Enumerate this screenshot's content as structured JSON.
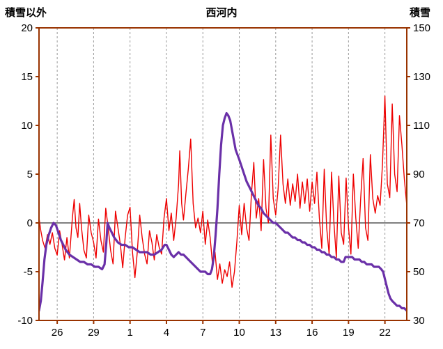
{
  "chart_data": {
    "type": "line",
    "title": "西河内",
    "frame_color": "#993300",
    "grid_color": "#999999",
    "zero_line_color": "#555555",
    "x_axis": {
      "min": 0,
      "max": 30.3,
      "tick_positions": [
        1.5,
        4.5,
        7.5,
        10.5,
        13.5,
        16.5,
        19.5,
        22.5,
        25.5,
        28.5
      ],
      "tick_labels": [
        "26",
        "29",
        "1",
        "4",
        "7",
        "10",
        "13",
        "16",
        "19",
        "22"
      ]
    },
    "left_axis": {
      "label": "積雪以外",
      "min": -10,
      "max": 20,
      "ticks": [
        20,
        15,
        10,
        5,
        0,
        -5,
        -10
      ],
      "zero_line": 0
    },
    "right_axis": {
      "label": "積雪",
      "min": 30,
      "max": 150,
      "ticks": [
        150,
        130,
        110,
        90,
        70,
        50,
        30
      ]
    },
    "grid": {
      "vertical_dashed": true,
      "horizontal": false
    },
    "legend": "none",
    "series": [
      {
        "name": "積雪以外",
        "axis": "left",
        "color": "#ee0000",
        "width": 1.4,
        "points": [
          [
            0,
            0.5
          ],
          [
            0.15,
            -0.8
          ],
          [
            0.3,
            -1.8
          ],
          [
            0.5,
            -2.6
          ],
          [
            0.7,
            -1.2
          ],
          [
            0.9,
            -2.2
          ],
          [
            1.1,
            -1.0
          ],
          [
            1.3,
            -2.6
          ],
          [
            1.5,
            -3.3
          ],
          [
            1.7,
            -0.8
          ],
          [
            1.9,
            -2.2
          ],
          [
            2.1,
            -3.8
          ],
          [
            2.3,
            -1.5
          ],
          [
            2.5,
            -3.6
          ],
          [
            2.75,
            0.5
          ],
          [
            2.9,
            2.4
          ],
          [
            3.05,
            -0.5
          ],
          [
            3.2,
            -1.5
          ],
          [
            3.35,
            2.0
          ],
          [
            3.5,
            -0.5
          ],
          [
            3.7,
            -2.8
          ],
          [
            3.9,
            -3.6
          ],
          [
            4.1,
            0.8
          ],
          [
            4.3,
            -1.0
          ],
          [
            4.5,
            -2.0
          ],
          [
            4.7,
            -3.6
          ],
          [
            4.9,
            0.4
          ],
          [
            5.1,
            -1.8
          ],
          [
            5.3,
            -3.0
          ],
          [
            5.5,
            1.5
          ],
          [
            5.7,
            -0.5
          ],
          [
            5.9,
            -2.8
          ],
          [
            6.1,
            -4.2
          ],
          [
            6.3,
            1.2
          ],
          [
            6.5,
            -0.5
          ],
          [
            6.7,
            -2.2
          ],
          [
            6.9,
            -4.6
          ],
          [
            7.1,
            -1.5
          ],
          [
            7.3,
            0.8
          ],
          [
            7.5,
            1.6
          ],
          [
            7.7,
            -3.0
          ],
          [
            7.9,
            -5.6
          ],
          [
            8.1,
            -3.0
          ],
          [
            8.3,
            0.8
          ],
          [
            8.5,
            -1.5
          ],
          [
            8.7,
            -3.2
          ],
          [
            8.9,
            -4.2
          ],
          [
            9.1,
            -0.8
          ],
          [
            9.3,
            -2.0
          ],
          [
            9.5,
            -3.8
          ],
          [
            9.7,
            -1.2
          ],
          [
            9.9,
            -2.5
          ],
          [
            10.1,
            -3.2
          ],
          [
            10.3,
            0.5
          ],
          [
            10.5,
            2.5
          ],
          [
            10.7,
            -0.8
          ],
          [
            10.9,
            1.0
          ],
          [
            11.1,
            -1.8
          ],
          [
            11.3,
            0.5
          ],
          [
            11.5,
            4.0
          ],
          [
            11.6,
            7.4
          ],
          [
            11.75,
            2.0
          ],
          [
            11.9,
            0.3
          ],
          [
            12.1,
            3.0
          ],
          [
            12.3,
            5.5
          ],
          [
            12.5,
            8.6
          ],
          [
            12.7,
            2.0
          ],
          [
            12.9,
            -0.5
          ],
          [
            13.1,
            0.5
          ],
          [
            13.3,
            -1.0
          ],
          [
            13.5,
            1.2
          ],
          [
            13.7,
            -2.2
          ],
          [
            13.9,
            0.3
          ],
          [
            14.1,
            -1.5
          ],
          [
            14.3,
            -4.3
          ],
          [
            14.5,
            -3.0
          ],
          [
            14.7,
            -5.8
          ],
          [
            14.9,
            -4.2
          ],
          [
            15.1,
            -6.2
          ],
          [
            15.3,
            -4.8
          ],
          [
            15.5,
            -5.5
          ],
          [
            15.7,
            -4.0
          ],
          [
            15.9,
            -6.6
          ],
          [
            16.1,
            -5.0
          ],
          [
            16.3,
            -2.0
          ],
          [
            16.5,
            1.8
          ],
          [
            16.7,
            -1.2
          ],
          [
            16.9,
            2.0
          ],
          [
            17.1,
            -0.5
          ],
          [
            17.3,
            -1.8
          ],
          [
            17.5,
            3.0
          ],
          [
            17.7,
            6.2
          ],
          [
            17.9,
            0.5
          ],
          [
            18.1,
            2.5
          ],
          [
            18.3,
            -0.8
          ],
          [
            18.5,
            6.5
          ],
          [
            18.7,
            1.5
          ],
          [
            18.9,
            0.0
          ],
          [
            19.1,
            9.0
          ],
          [
            19.3,
            2.5
          ],
          [
            19.5,
            0.8
          ],
          [
            19.7,
            3.5
          ],
          [
            19.9,
            9.0
          ],
          [
            20.1,
            4.0
          ],
          [
            20.3,
            2.0
          ],
          [
            20.5,
            4.5
          ],
          [
            20.7,
            1.8
          ],
          [
            20.9,
            4.0
          ],
          [
            21.1,
            2.2
          ],
          [
            21.3,
            5.0
          ],
          [
            21.5,
            1.5
          ],
          [
            21.7,
            4.2
          ],
          [
            21.9,
            2.0
          ],
          [
            22.1,
            4.5
          ],
          [
            22.3,
            1.2
          ],
          [
            22.5,
            4.2
          ],
          [
            22.7,
            2.0
          ],
          [
            22.9,
            5.2
          ],
          [
            23.1,
            0.5
          ],
          [
            23.3,
            -2.6
          ],
          [
            23.5,
            5.5
          ],
          [
            23.7,
            -0.5
          ],
          [
            23.9,
            -3.2
          ],
          [
            24.1,
            5.2
          ],
          [
            24.3,
            0.0
          ],
          [
            24.5,
            -3.6
          ],
          [
            24.7,
            4.8
          ],
          [
            24.9,
            -1.0
          ],
          [
            25.1,
            -2.2
          ],
          [
            25.3,
            4.6
          ],
          [
            25.5,
            -0.5
          ],
          [
            25.7,
            -3.2
          ],
          [
            25.9,
            5.0
          ],
          [
            26.1,
            0.5
          ],
          [
            26.3,
            -2.6
          ],
          [
            26.5,
            2.5
          ],
          [
            26.7,
            6.6
          ],
          [
            26.9,
            -0.5
          ],
          [
            27.1,
            -1.8
          ],
          [
            27.3,
            7.0
          ],
          [
            27.5,
            2.5
          ],
          [
            27.7,
            1.0
          ],
          [
            27.9,
            2.8
          ],
          [
            28.1,
            1.8
          ],
          [
            28.3,
            6.0
          ],
          [
            28.5,
            13.0
          ],
          [
            28.7,
            4.0
          ],
          [
            28.9,
            2.6
          ],
          [
            29.1,
            12.2
          ],
          [
            29.3,
            5.0
          ],
          [
            29.5,
            3.2
          ],
          [
            29.7,
            11.0
          ],
          [
            29.9,
            8.0
          ],
          [
            30.1,
            4.5
          ],
          [
            30.3,
            1.8
          ]
        ]
      },
      {
        "name": "積雪",
        "axis": "right",
        "color": "#6a30a8",
        "width": 3.2,
        "points": [
          [
            0,
            34
          ],
          [
            0.15,
            38
          ],
          [
            0.3,
            46
          ],
          [
            0.45,
            55
          ],
          [
            0.6,
            61
          ],
          [
            0.8,
            65
          ],
          [
            1.0,
            68
          ],
          [
            1.2,
            70
          ],
          [
            1.4,
            69
          ],
          [
            1.6,
            66
          ],
          [
            1.8,
            63
          ],
          [
            2.0,
            61
          ],
          [
            2.2,
            59
          ],
          [
            2.5,
            57
          ],
          [
            2.8,
            56
          ],
          [
            3.1,
            55
          ],
          [
            3.4,
            54
          ],
          [
            3.7,
            54
          ],
          [
            4.0,
            53
          ],
          [
            4.3,
            53
          ],
          [
            4.6,
            52
          ],
          [
            4.9,
            52
          ],
          [
            5.2,
            51
          ],
          [
            5.4,
            53
          ],
          [
            5.55,
            62
          ],
          [
            5.65,
            70
          ],
          [
            5.8,
            68
          ],
          [
            6.0,
            66
          ],
          [
            6.2,
            64
          ],
          [
            6.5,
            62
          ],
          [
            6.8,
            61
          ],
          [
            7.1,
            61
          ],
          [
            7.4,
            60
          ],
          [
            7.7,
            60
          ],
          [
            8.0,
            59
          ],
          [
            8.3,
            58
          ],
          [
            8.6,
            58
          ],
          [
            8.9,
            58
          ],
          [
            9.2,
            57
          ],
          [
            9.5,
            57
          ],
          [
            9.8,
            58
          ],
          [
            10.1,
            59
          ],
          [
            10.35,
            61
          ],
          [
            10.5,
            61
          ],
          [
            10.7,
            59
          ],
          [
            10.9,
            57
          ],
          [
            11.1,
            56
          ],
          [
            11.3,
            57
          ],
          [
            11.5,
            58
          ],
          [
            11.7,
            57
          ],
          [
            11.9,
            57
          ],
          [
            12.1,
            56
          ],
          [
            12.3,
            55
          ],
          [
            12.5,
            54
          ],
          [
            12.7,
            53
          ],
          [
            12.9,
            52
          ],
          [
            13.1,
            51
          ],
          [
            13.3,
            50
          ],
          [
            13.5,
            50
          ],
          [
            13.7,
            50
          ],
          [
            13.9,
            49
          ],
          [
            14.1,
            49
          ],
          [
            14.25,
            51
          ],
          [
            14.4,
            56
          ],
          [
            14.55,
            65
          ],
          [
            14.7,
            76
          ],
          [
            14.85,
            90
          ],
          [
            15.0,
            102
          ],
          [
            15.15,
            110
          ],
          [
            15.3,
            113
          ],
          [
            15.45,
            115
          ],
          [
            15.6,
            114
          ],
          [
            15.75,
            112
          ],
          [
            15.9,
            108
          ],
          [
            16.05,
            104
          ],
          [
            16.2,
            100
          ],
          [
            16.35,
            98
          ],
          [
            16.5,
            96
          ],
          [
            16.7,
            93
          ],
          [
            16.9,
            90
          ],
          [
            17.1,
            87
          ],
          [
            17.3,
            85
          ],
          [
            17.5,
            83
          ],
          [
            17.7,
            81
          ],
          [
            17.9,
            79
          ],
          [
            18.1,
            77
          ],
          [
            18.3,
            76
          ],
          [
            18.5,
            74
          ],
          [
            18.7,
            73
          ],
          [
            18.9,
            72
          ],
          [
            19.1,
            71
          ],
          [
            19.3,
            70
          ],
          [
            19.5,
            70
          ],
          [
            19.7,
            69
          ],
          [
            19.9,
            68
          ],
          [
            20.1,
            67
          ],
          [
            20.3,
            66
          ],
          [
            20.5,
            66
          ],
          [
            20.7,
            65
          ],
          [
            20.9,
            64
          ],
          [
            21.1,
            64
          ],
          [
            21.3,
            63
          ],
          [
            21.5,
            63
          ],
          [
            21.7,
            62
          ],
          [
            21.9,
            62
          ],
          [
            22.1,
            61
          ],
          [
            22.3,
            61
          ],
          [
            22.5,
            60
          ],
          [
            22.7,
            60
          ],
          [
            22.9,
            59
          ],
          [
            23.1,
            59
          ],
          [
            23.3,
            58
          ],
          [
            23.5,
            58
          ],
          [
            23.7,
            57
          ],
          [
            23.9,
            57
          ],
          [
            24.1,
            56
          ],
          [
            24.3,
            56
          ],
          [
            24.5,
            55
          ],
          [
            24.7,
            55
          ],
          [
            24.9,
            54
          ],
          [
            25.1,
            54
          ],
          [
            25.25,
            56
          ],
          [
            25.4,
            56
          ],
          [
            25.6,
            56
          ],
          [
            25.8,
            56
          ],
          [
            26.0,
            55
          ],
          [
            26.2,
            55
          ],
          [
            26.4,
            55
          ],
          [
            26.6,
            54
          ],
          [
            26.8,
            54
          ],
          [
            27.0,
            53
          ],
          [
            27.2,
            53
          ],
          [
            27.4,
            53
          ],
          [
            27.6,
            52
          ],
          [
            27.8,
            52
          ],
          [
            28.0,
            52
          ],
          [
            28.2,
            51
          ],
          [
            28.35,
            50
          ],
          [
            28.5,
            47
          ],
          [
            28.65,
            44
          ],
          [
            28.8,
            41
          ],
          [
            28.95,
            39
          ],
          [
            29.1,
            38
          ],
          [
            29.3,
            37
          ],
          [
            29.5,
            36
          ],
          [
            29.7,
            36
          ],
          [
            29.9,
            35
          ],
          [
            30.1,
            35
          ],
          [
            30.3,
            34
          ]
        ]
      }
    ]
  }
}
